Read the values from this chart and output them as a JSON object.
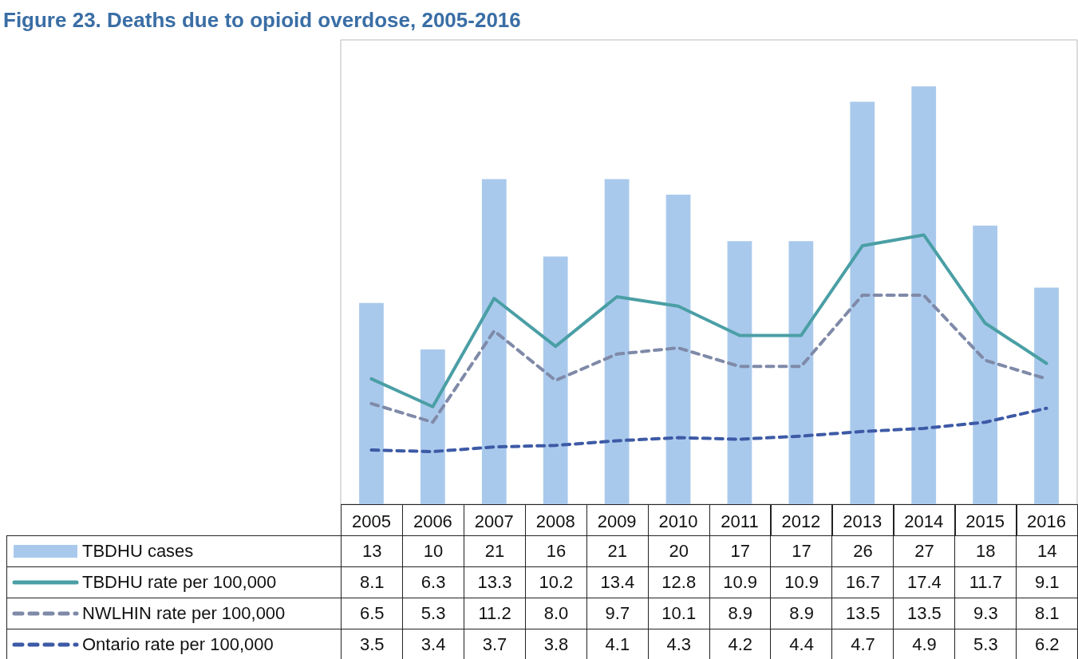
{
  "chart_data": {
    "type": "bar",
    "title": "Figure 23. Deaths due to opioid overdose, 2005-2016",
    "categories": [
      "2005",
      "2006",
      "2007",
      "2008",
      "2009",
      "2010",
      "2011",
      "2012",
      "2013",
      "2014",
      "2015",
      "2016"
    ],
    "ylim": [
      0,
      30
    ],
    "legend": "bottom",
    "marker": "none",
    "series": [
      {
        "name": "TBDHU cases",
        "color": "#a9c9ec",
        "values": [
          13,
          10,
          21,
          16,
          21,
          20,
          17,
          17,
          26,
          27,
          18,
          14
        ],
        "value_labels": [
          "13",
          "10",
          "21",
          "16",
          "21",
          "20",
          "17",
          "17",
          "26",
          "27",
          "18",
          "14"
        ]
      },
      {
        "name": "TBDHU rate per 100,000",
        "type": "line",
        "line_style": "solid",
        "color": "#4a9fa5",
        "values": [
          8.1,
          6.3,
          13.3,
          10.2,
          13.4,
          12.8,
          10.9,
          10.9,
          16.7,
          17.4,
          11.7,
          9.1
        ],
        "value_labels": [
          "8.1",
          "6.3",
          "13.3",
          "10.2",
          "13.4",
          "12.8",
          "10.9",
          "10.9",
          "16.7",
          "17.4",
          "11.7",
          "9.1"
        ]
      },
      {
        "name": "NWLHIN rate per 100,000",
        "type": "line",
        "line_style": "dashed",
        "color": "#7f8aa8",
        "values": [
          6.5,
          5.3,
          11.2,
          8.0,
          9.7,
          10.1,
          8.9,
          8.9,
          13.5,
          13.5,
          9.3,
          8.1
        ],
        "value_labels": [
          "6.5",
          "5.3",
          "11.2",
          "8.0",
          "9.7",
          "10.1",
          "8.9",
          "8.9",
          "13.5",
          "13.5",
          "9.3",
          "8.1"
        ]
      },
      {
        "name": "Ontario rate per 100,000",
        "type": "line",
        "line_style": "dashed",
        "color": "#3d5aa6",
        "values": [
          3.5,
          3.4,
          3.7,
          3.8,
          4.1,
          4.3,
          4.2,
          4.4,
          4.7,
          4.9,
          5.3,
          6.2
        ],
        "value_labels": [
          "3.5",
          "3.4",
          "3.7",
          "3.8",
          "4.1",
          "4.3",
          "4.2",
          "4.4",
          "4.7",
          "4.9",
          "5.3",
          "6.2"
        ]
      }
    ]
  }
}
